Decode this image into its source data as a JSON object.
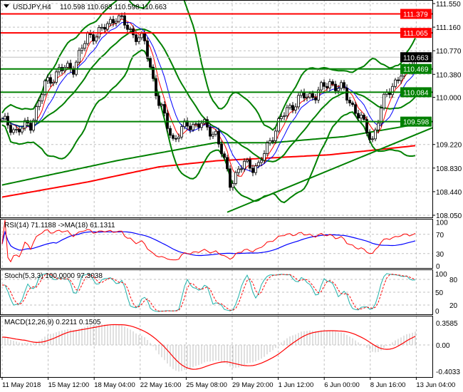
{
  "header": {
    "symbol": "USDJPY,H4",
    "ohlc": "110.598 110.683 110.598 110.663",
    "dropdown_icon": "triangle-down-icon"
  },
  "colors": {
    "bull": "#ffffff",
    "bear": "#000000",
    "support": "#008000",
    "resistance": "#ff0000",
    "band": "#008000",
    "fast_ma": "#ff0000",
    "slow_ma": "#0000ff",
    "long_ma": "#ff0000",
    "grid": "#c0c0c0",
    "rsi": "#ff0000",
    "rsi_ma": "#0000ff",
    "stoch_main": "#20b2aa",
    "stoch_signal": "#ff0000",
    "macd_hist": "#c0c0c0",
    "macd_signal": "#ff0000"
  },
  "price_axis": {
    "ticks": [
      "111.550",
      "111.160",
      "110.770",
      "110.380",
      "110.000",
      "109.220",
      "108.830",
      "108.440",
      "108.050"
    ],
    "current": "110.663"
  },
  "levels": [
    {
      "price": "111.379",
      "type": "resistance"
    },
    {
      "price": "111.065",
      "type": "resistance"
    },
    {
      "price": "110.469",
      "type": "support"
    },
    {
      "price": "110.084",
      "type": "support"
    },
    {
      "price": "109.598",
      "type": "support"
    }
  ],
  "rsi": {
    "label": "RSI(14) 71.1188  ->MA(18) 61.1311",
    "ticks": [
      "100",
      "70",
      "30",
      "0"
    ]
  },
  "stoch": {
    "label": "Stoch(5,3,3) 100.0000 97.3038",
    "ticks": [
      "100",
      "80",
      "50",
      "20",
      "0"
    ]
  },
  "macd": {
    "label": "MACD(12,26,9) 0.2211 0.1505",
    "ticks": [
      "0.3585",
      "0.00",
      "-0.4033"
    ]
  },
  "time_axis": [
    "11 May 2018",
    "15 May 12:00",
    "18 May 04:00",
    "22 May 16:00",
    "25 May 08:00",
    "29 May 20:00",
    "1 Jun 12:00",
    "6 Jun 00:00",
    "8 Jun 16:00",
    "13 Jun 04:00"
  ],
  "chart_data": {
    "type": "candlestick",
    "timeframe": "H4",
    "ylim": [
      108.05,
      111.55
    ],
    "bars": 146,
    "close_every_5_bars": [
      109.6,
      109.45,
      109.55,
      110.2,
      110.45,
      110.5,
      111.0,
      111.1,
      111.35,
      111.1,
      110.9,
      109.9,
      109.3,
      109.55,
      109.55,
      109.4,
      108.6,
      108.9,
      108.85,
      109.4,
      109.8,
      110.0,
      110.05,
      110.25,
      110.1,
      109.7,
      109.3,
      110.1,
      110.35,
      110.663
    ],
    "long_ma": [
      [
        0,
        108.35
      ],
      [
        30,
        108.6
      ],
      [
        55,
        108.85
      ],
      [
        75,
        108.95
      ],
      [
        95,
        109.0
      ],
      [
        115,
        109.05
      ],
      [
        145,
        109.2
      ]
    ],
    "slow_green_ma": [
      [
        0,
        108.55
      ],
      [
        40,
        108.95
      ],
      [
        75,
        109.25
      ],
      [
        95,
        109.25
      ],
      [
        120,
        109.35
      ],
      [
        145,
        109.55
      ]
    ],
    "trendline": {
      "bar1": 79,
      "p1": 108.1,
      "bar2": 145,
      "p2": 109.38
    },
    "rsi_ylim": [
      0,
      100
    ],
    "stoch_ylim": [
      0,
      100
    ],
    "macd_ylim": [
      -0.4033,
      0.3585
    ]
  }
}
